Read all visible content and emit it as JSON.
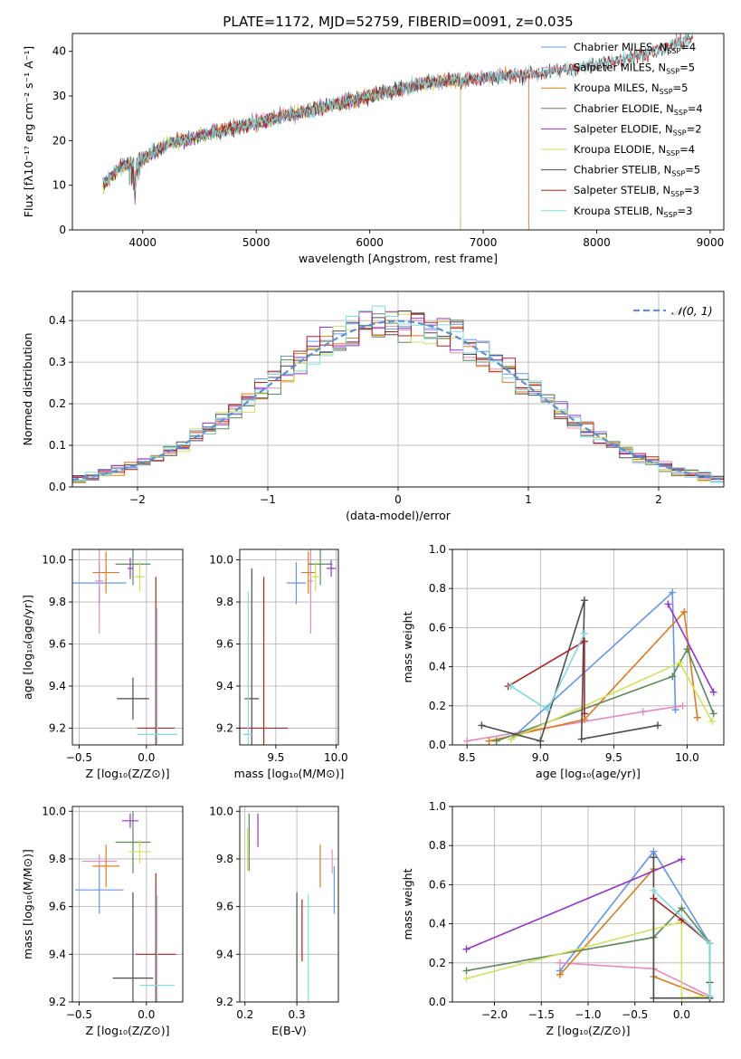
{
  "chart_data": [
    {
      "id": "spectrum",
      "type": "line",
      "title": "PLATE=1172, MJD=52759, FIBERID=0091, z=0.035",
      "xlabel": "wavelength [Angstrom, rest frame]",
      "ylabel": "Flux [fλ10⁻¹⁷ erg cm⁻² s⁻¹ A⁻¹]",
      "xlim": [
        3380,
        9120
      ],
      "ylim": [
        0,
        44
      ],
      "xticks": [
        4000,
        5000,
        6000,
        7000,
        8000,
        9000
      ],
      "yticks": [
        0,
        10,
        20,
        30,
        40
      ],
      "legend_position": "top-right",
      "continuum": {
        "x": [
          3650,
          3800,
          4000,
          4200,
          4500,
          5000,
          5500,
          6000,
          6500,
          7000,
          7500,
          8000,
          8500,
          8850
        ],
        "y": [
          10,
          14,
          16,
          19,
          21,
          24,
          27,
          30,
          33,
          34,
          35,
          37,
          40,
          43
        ]
      },
      "series": [
        {
          "name": "Chabrier MILES, N",
          "sub": "SSP",
          "suffix": "=4",
          "color": "#6495ed",
          "x_end": 7400
        },
        {
          "name": "Salpeter MILES, N",
          "sub": "SSP",
          "suffix": "=5",
          "color": "#e78ac3",
          "x_end": 7400
        },
        {
          "name": "Kroupa MILES, N",
          "sub": "SSP",
          "suffix": "=5",
          "color": "#e07b1c",
          "x_end": 7400
        },
        {
          "name": "Chabrier ELODIE, N",
          "sub": "SSP",
          "suffix": "=4",
          "color": "#5a8a5a",
          "x_end": 6800
        },
        {
          "name": "Salpeter ELODIE, N",
          "sub": "SSP",
          "suffix": "=2",
          "color": "#9932cc",
          "x_end": 6800
        },
        {
          "name": "Kroupa ELODIE, N",
          "sub": "SSP",
          "suffix": "=4",
          "color": "#d4e157",
          "x_end": 6800
        },
        {
          "name": "Chabrier STELIB, N",
          "sub": "SSP",
          "suffix": "=5",
          "color": "#4d4d4d",
          "x_end": 8850
        },
        {
          "name": "Salpeter STELIB, N",
          "sub": "SSP",
          "suffix": "=3",
          "color": "#b22222",
          "x_end": 8850
        },
        {
          "name": "Kroupa STELIB, N",
          "sub": "SSP",
          "suffix": "=3",
          "color": "#7fdde0",
          "x_end": 8850
        }
      ]
    },
    {
      "id": "residuals",
      "type": "histogram",
      "title": "",
      "xlabel": "(data-model)/error",
      "ylabel": "Normed distribution",
      "xlim": [
        -2.5,
        2.5
      ],
      "ylim": [
        0,
        0.47
      ],
      "xticks": [
        -2,
        -1,
        0,
        1,
        2
      ],
      "yticks": [
        0.0,
        0.1,
        0.2,
        0.3,
        0.4
      ],
      "grid": true,
      "bin_width": 0.1,
      "legend_position": "top-right",
      "reference_curve": {
        "name": "𝒩(0, 1)",
        "color": "#5b8fd6",
        "style": "dashed"
      }
    },
    {
      "id": "age-vs-Z",
      "type": "errorbar",
      "xlabel": "Z [log₁₀(Z/Z⊙)]",
      "ylabel": "age  [log₁₀(age/yr)]",
      "xlim": [
        -0.55,
        0.27
      ],
      "ylim": [
        9.12,
        10.05
      ],
      "xticks": [
        -0.5,
        0.0
      ],
      "yticks": [
        9.2,
        9.4,
        9.6,
        9.8,
        10.0
      ],
      "grid": true,
      "points": [
        {
          "x": -0.35,
          "y": 9.89,
          "xerr": 0.2,
          "yerr": 0.1,
          "color": "#6495ed"
        },
        {
          "x": -0.35,
          "y": 9.9,
          "xerr": 0.03,
          "yerr": 0.25,
          "color": "#e78ac3"
        },
        {
          "x": -0.3,
          "y": 9.94,
          "xerr": 0.1,
          "yerr": 0.1,
          "color": "#e07b1c"
        },
        {
          "x": -0.1,
          "y": 9.98,
          "xerr": 0.13,
          "yerr": 0.1,
          "color": "#5a8a5a"
        },
        {
          "x": -0.12,
          "y": 9.96,
          "xerr": 0.02,
          "yerr": 0.05,
          "color": "#9932cc"
        },
        {
          "x": -0.05,
          "y": 9.92,
          "xerr": 0.04,
          "yerr": 0.07,
          "color": "#d4e157"
        },
        {
          "x": -0.1,
          "y": 9.34,
          "xerr": 0.12,
          "yerr": 0.1,
          "color": "#4d4d4d"
        },
        {
          "x": 0.07,
          "y": 9.2,
          "xerr": 0.14,
          "yerr": 0.72,
          "color": "#b22222"
        },
        {
          "x": 0.08,
          "y": 9.17,
          "xerr": 0.15,
          "yerr": 0.6,
          "color": "#7fdde0"
        }
      ]
    },
    {
      "id": "age-vs-mass",
      "type": "errorbar",
      "xlabel": "mass [log₁₀(M/M⊙)]",
      "ylabel": "",
      "xlim": [
        9.2,
        10.02
      ],
      "ylim": [
        9.12,
        10.05
      ],
      "xticks": [
        9.5,
        10.0
      ],
      "yticks": [
        9.2,
        9.4,
        9.6,
        9.8,
        10.0
      ],
      "grid": true,
      "points": [
        {
          "x": 9.67,
          "y": 9.89,
          "xerr": 0.08,
          "yerr": 0.1,
          "color": "#6495ed"
        },
        {
          "x": 9.79,
          "y": 9.9,
          "xerr": 0.02,
          "yerr": 0.25,
          "color": "#e78ac3"
        },
        {
          "x": 9.77,
          "y": 9.94,
          "xerr": 0.06,
          "yerr": 0.1,
          "color": "#e07b1c"
        },
        {
          "x": 9.87,
          "y": 9.98,
          "xerr": 0.1,
          "yerr": 0.1,
          "color": "#5a8a5a"
        },
        {
          "x": 9.96,
          "y": 9.96,
          "xerr": 0.04,
          "yerr": 0.04,
          "color": "#9932cc"
        },
        {
          "x": 9.83,
          "y": 9.92,
          "xerr": 0.04,
          "yerr": 0.07,
          "color": "#d4e157"
        },
        {
          "x": 9.3,
          "y": 9.34,
          "xerr": 0.06,
          "yerr": 0.62,
          "color": "#4d4d4d"
        },
        {
          "x": 9.4,
          "y": 9.2,
          "xerr": 0.2,
          "yerr": 0.72,
          "color": "#b22222"
        },
        {
          "x": 9.27,
          "y": 9.17,
          "xerr": 0.04,
          "yerr": 0.68,
          "color": "#7fdde0"
        }
      ]
    },
    {
      "id": "massweight-vs-age",
      "type": "line",
      "xlabel": "age  [log₁₀(age/yr)]",
      "ylabel": "mass weight",
      "xlim": [
        8.4,
        10.25
      ],
      "ylim": [
        0,
        1.0
      ],
      "xticks": [
        8.5,
        9.0,
        9.5,
        10.0
      ],
      "yticks": [
        0.0,
        0.2,
        0.4,
        0.6,
        0.8,
        1.0
      ],
      "grid": true,
      "series": [
        {
          "color": "#6495ed",
          "x": [
            8.8,
            9.9,
            9.92
          ],
          "y": [
            0.03,
            0.78,
            0.18
          ]
        },
        {
          "color": "#e78ac3",
          "x": [
            8.5,
            9.7,
            9.97
          ],
          "y": [
            0.02,
            0.17,
            0.2
          ]
        },
        {
          "color": "#e07b1c",
          "x": [
            8.65,
            9.3,
            9.98,
            10.07
          ],
          "y": [
            0.02,
            0.13,
            0.68,
            0.14
          ]
        },
        {
          "color": "#5a8a5a",
          "x": [
            8.7,
            9.9,
            10.0,
            10.18
          ],
          "y": [
            0.02,
            0.35,
            0.49,
            0.16
          ]
        },
        {
          "color": "#9932cc",
          "x": [
            9.87,
            10.18
          ],
          "y": [
            0.72,
            0.27
          ]
        },
        {
          "color": "#d4e157",
          "x": [
            8.8,
            9.95,
            10.17
          ],
          "y": [
            0.03,
            0.42,
            0.12
          ]
        },
        {
          "color": "#4d4d4d",
          "x": [
            8.6,
            9.0,
            9.3,
            9.28,
            9.8
          ],
          "y": [
            0.1,
            0.02,
            0.74,
            0.03,
            0.1
          ]
        },
        {
          "color": "#b22222",
          "x": [
            8.78,
            9.3,
            9.3
          ],
          "y": [
            0.3,
            0.53,
            0.16
          ]
        },
        {
          "color": "#7fdde0",
          "x": [
            8.8,
            9.05,
            9.3
          ],
          "y": [
            0.3,
            0.18,
            0.57
          ]
        }
      ]
    },
    {
      "id": "mass-vs-Z",
      "type": "errorbar",
      "xlabel": "Z [log₁₀(Z/Z⊙)]",
      "ylabel": "mass [log₁₀(M/M⊙)]",
      "xlim": [
        -0.55,
        0.27
      ],
      "ylim": [
        9.2,
        10.02
      ],
      "xticks": [
        -0.5,
        0.0
      ],
      "yticks": [
        9.2,
        9.4,
        9.6,
        9.8,
        10.0
      ],
      "grid": true,
      "points": [
        {
          "x": -0.35,
          "y": 9.67,
          "xerr": 0.18,
          "yerr": 0.1,
          "color": "#6495ed"
        },
        {
          "x": -0.35,
          "y": 9.79,
          "xerr": 0.13,
          "yerr": 0.03,
          "color": "#e78ac3"
        },
        {
          "x": -0.3,
          "y": 9.77,
          "xerr": 0.1,
          "yerr": 0.09,
          "color": "#e07b1c"
        },
        {
          "x": -0.1,
          "y": 9.87,
          "xerr": 0.13,
          "yerr": 0.13,
          "color": "#5a8a5a"
        },
        {
          "x": -0.12,
          "y": 9.96,
          "xerr": 0.06,
          "yerr": 0.03,
          "color": "#9932cc"
        },
        {
          "x": -0.05,
          "y": 9.83,
          "xerr": 0.08,
          "yerr": 0.05,
          "color": "#d4e157"
        },
        {
          "x": -0.1,
          "y": 9.3,
          "xerr": 0.15,
          "yerr": 0.36,
          "color": "#4d4d4d"
        },
        {
          "x": 0.07,
          "y": 9.4,
          "xerr": 0.15,
          "yerr": 0.34,
          "color": "#b22222"
        },
        {
          "x": 0.08,
          "y": 9.27,
          "xerr": 0.13,
          "yerr": 0.38,
          "color": "#7fdde0"
        }
      ]
    },
    {
      "id": "mass-vs-ebv",
      "type": "errorbar",
      "xlabel": "E(B-V)",
      "ylabel": "",
      "xlim": [
        0.19,
        0.38
      ],
      "ylim": [
        9.2,
        10.02
      ],
      "xticks": [
        0.2,
        0.3
      ],
      "yticks": [
        9.2,
        9.4,
        9.6,
        9.8,
        10.0
      ],
      "grid": true,
      "points": [
        {
          "x": 0.372,
          "y": 9.67,
          "xerr": 0,
          "yerr": 0.1,
          "color": "#6495ed"
        },
        {
          "x": 0.368,
          "y": 9.79,
          "xerr": 0,
          "yerr": 0.05,
          "color": "#e78ac3"
        },
        {
          "x": 0.345,
          "y": 9.77,
          "xerr": 0,
          "yerr": 0.09,
          "color": "#e07b1c"
        },
        {
          "x": 0.208,
          "y": 9.87,
          "xerr": 0,
          "yerr": 0.12,
          "color": "#5a8a5a"
        },
        {
          "x": 0.225,
          "y": 9.92,
          "xerr": 0,
          "yerr": 0.07,
          "color": "#9932cc"
        },
        {
          "x": 0.205,
          "y": 9.84,
          "xerr": 0,
          "yerr": 0.09,
          "color": "#d4e157"
        },
        {
          "x": 0.3,
          "y": 9.3,
          "xerr": 0,
          "yerr": 0.36,
          "color": "#4d4d4d"
        },
        {
          "x": 0.31,
          "y": 9.5,
          "xerr": 0,
          "yerr": 0.13,
          "color": "#b22222"
        },
        {
          "x": 0.322,
          "y": 9.27,
          "xerr": 0,
          "yerr": 0.38,
          "color": "#7fdde0"
        }
      ]
    },
    {
      "id": "massweight-vs-Z",
      "type": "line",
      "xlabel": "Z [log₁₀(Z/Z⊙)]",
      "ylabel": "mass weight",
      "xlim": [
        -2.45,
        0.45
      ],
      "ylim": [
        0,
        1.0
      ],
      "xticks": [
        -2.0,
        -1.5,
        -1.0,
        -0.5,
        0.0
      ],
      "yticks": [
        0.0,
        0.2,
        0.4,
        0.6,
        0.8,
        1.0
      ],
      "grid": true,
      "series": [
        {
          "color": "#6495ed",
          "x": [
            -1.3,
            -0.3,
            0.3,
            0.3
          ],
          "y": [
            0.16,
            0.77,
            0.3,
            0.03
          ]
        },
        {
          "color": "#e78ac3",
          "x": [
            -1.3,
            -0.3,
            0.3
          ],
          "y": [
            0.2,
            0.17,
            0.03
          ]
        },
        {
          "color": "#e07b1c",
          "x": [
            -1.3,
            -0.3,
            -0.3,
            0.3
          ],
          "y": [
            0.14,
            0.68,
            0.13,
            0.02
          ]
        },
        {
          "color": "#5a8a5a",
          "x": [
            -2.3,
            -0.3,
            0.0,
            0.3,
            0.3
          ],
          "y": [
            0.16,
            0.33,
            0.48,
            0.3,
            0.02
          ]
        },
        {
          "color": "#9932cc",
          "x": [
            -2.3,
            0.0
          ],
          "y": [
            0.27,
            0.73
          ]
        },
        {
          "color": "#d4e157",
          "x": [
            -2.3,
            0.0,
            0.0,
            0.3
          ],
          "y": [
            0.12,
            0.41,
            0.02,
            0.03
          ]
        },
        {
          "color": "#4d4d4d",
          "x": [
            -0.3,
            -0.3,
            0.3,
            0.3
          ],
          "y": [
            0.74,
            0.02,
            0.02,
            0.1
          ]
        },
        {
          "color": "#b22222",
          "x": [
            -0.3,
            0.0,
            0.3
          ],
          "y": [
            0.53,
            0.42,
            0.3
          ]
        },
        {
          "color": "#7fdde0",
          "x": [
            -0.3,
            0.3,
            0.3
          ],
          "y": [
            0.57,
            0.3,
            0.03
          ]
        }
      ]
    }
  ]
}
